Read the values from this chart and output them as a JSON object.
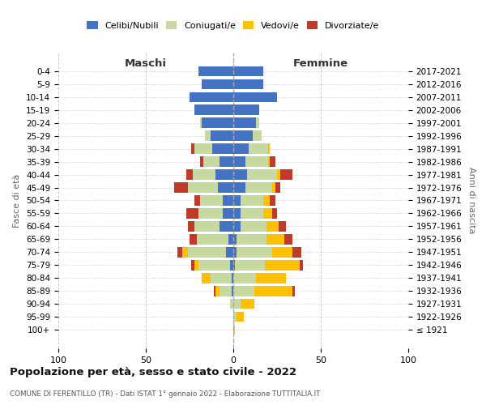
{
  "age_groups": [
    "0-4",
    "5-9",
    "10-14",
    "15-19",
    "20-24",
    "25-29",
    "30-34",
    "35-39",
    "40-44",
    "45-49",
    "50-54",
    "55-59",
    "60-64",
    "65-69",
    "70-74",
    "75-79",
    "80-84",
    "85-89",
    "90-94",
    "95-99",
    "100+"
  ],
  "birth_years": [
    "2017-2021",
    "2012-2016",
    "2007-2011",
    "2002-2006",
    "1997-2001",
    "1992-1996",
    "1987-1991",
    "1982-1986",
    "1977-1981",
    "1972-1976",
    "1967-1971",
    "1962-1966",
    "1957-1961",
    "1952-1956",
    "1947-1951",
    "1942-1946",
    "1937-1941",
    "1932-1936",
    "1927-1931",
    "1922-1926",
    "≤ 1921"
  ],
  "colors": {
    "celibe": "#4472c4",
    "coniugato": "#c5d9a0",
    "vedovo": "#ffc000",
    "divorziato": "#c0392b"
  },
  "maschi": {
    "celibe": [
      20,
      18,
      25,
      22,
      18,
      13,
      12,
      8,
      10,
      9,
      6,
      6,
      8,
      3,
      4,
      2,
      1,
      1,
      0,
      0,
      0
    ],
    "coniugato": [
      0,
      0,
      0,
      0,
      1,
      3,
      10,
      9,
      13,
      17,
      13,
      14,
      14,
      18,
      22,
      18,
      12,
      7,
      2,
      0,
      0
    ],
    "vedovo": [
      0,
      0,
      0,
      0,
      0,
      0,
      0,
      0,
      0,
      0,
      0,
      0,
      0,
      0,
      3,
      2,
      5,
      2,
      0,
      0,
      0
    ],
    "divorziato": [
      0,
      0,
      0,
      0,
      0,
      0,
      2,
      2,
      4,
      8,
      3,
      7,
      4,
      4,
      3,
      2,
      0,
      1,
      0,
      0,
      0
    ]
  },
  "femmine": {
    "nubile": [
      17,
      17,
      25,
      15,
      13,
      11,
      9,
      7,
      8,
      7,
      4,
      4,
      4,
      2,
      2,
      1,
      0,
      0,
      0,
      0,
      0
    ],
    "coniugata": [
      0,
      0,
      0,
      0,
      2,
      5,
      11,
      13,
      17,
      15,
      13,
      13,
      15,
      17,
      20,
      17,
      13,
      12,
      4,
      2,
      0
    ],
    "vedova": [
      0,
      0,
      0,
      0,
      0,
      0,
      1,
      1,
      2,
      2,
      4,
      5,
      7,
      10,
      12,
      20,
      17,
      22,
      8,
      4,
      1
    ],
    "divorziata": [
      0,
      0,
      0,
      0,
      0,
      0,
      0,
      3,
      7,
      3,
      3,
      3,
      4,
      5,
      5,
      2,
      0,
      1,
      0,
      0,
      0
    ]
  },
  "xlim": 100,
  "title": "Popolazione per età, sesso e stato civile - 2022",
  "subtitle": "COMUNE DI FERENTILLO (TR) - Dati ISTAT 1° gennaio 2022 - Elaborazione TUTTITALIA.IT",
  "ylabel_left": "Fasce di età",
  "ylabel_right": "Anni di nascita",
  "xlabel_left": "Maschi",
  "xlabel_right": "Femmine",
  "legend_labels": [
    "Celibi/Nubili",
    "Coniugati/e",
    "Vedovi/e",
    "Divorziate/e"
  ]
}
